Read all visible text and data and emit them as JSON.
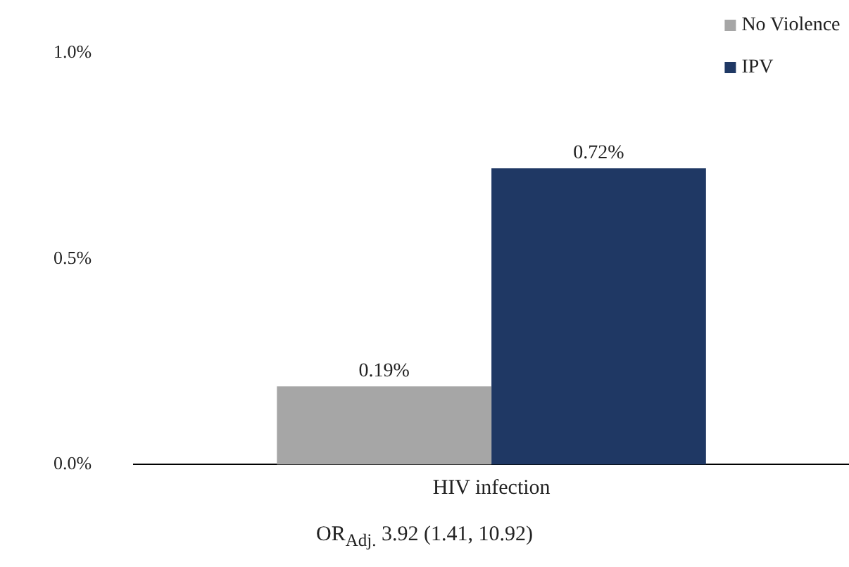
{
  "chart_data": {
    "type": "bar",
    "categories": [
      "HIV infection"
    ],
    "series": [
      {
        "name": "No Violence",
        "color": "#a6a6a6",
        "values": [
          0.19
        ],
        "value_labels": [
          "0.19%"
        ]
      },
      {
        "name": "IPV",
        "color": "#1f3864",
        "values": [
          0.72
        ],
        "value_labels": [
          "0.72%"
        ]
      }
    ],
    "ylim": [
      0,
      1
    ],
    "yticks": [
      {
        "value": 0,
        "label": "0.0%"
      },
      {
        "value": 0.5,
        "label": "0.5%"
      },
      {
        "value": 1,
        "label": "1.0%"
      }
    ],
    "grid": false,
    "legend": "top right",
    "annotations": [
      "OR$_{Adj.}$ 3.92 (1.41, 10.92)"
    ]
  }
}
